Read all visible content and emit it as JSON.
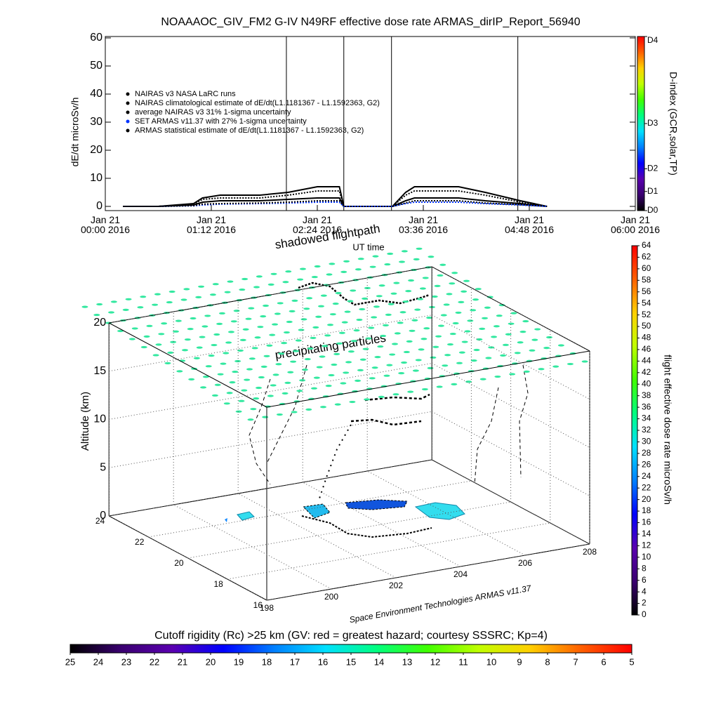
{
  "chart_data": {
    "type": "line",
    "title": "NOAAAOC_GIV_FM2 G-IV    N49RF   effective dose rate ARMAS_dirIP_Report_56940",
    "ylabel": "dE/dt microSv/h",
    "xlabel": "UT time",
    "x": [
      0.2,
      0.6,
      1.0,
      1.1,
      1.3,
      1.75,
      2.07,
      2.4,
      2.65,
      2.7,
      3.25,
      3.4,
      3.5,
      4.0,
      4.3,
      4.7,
      5.0
    ],
    "series": [
      {
        "name": "NAIRAS v3 NASA LaRC runs",
        "color": "#000000",
        "values": [
          0,
          0,
          0.5,
          1.5,
          2,
          2,
          2.5,
          3,
          3,
          0,
          0,
          2,
          3,
          3,
          2,
          1,
          0
        ]
      },
      {
        "name": "NAIRAS climatological estimate of dE/dt(L1.1181367 - L1.1592363, G2)",
        "color": "#000000",
        "values": [
          0,
          0,
          1,
          3,
          4,
          4,
          5,
          7,
          7,
          0,
          0,
          5,
          7,
          7,
          5,
          2,
          0
        ]
      },
      {
        "name": "average NAIRAS v3 31% 1-sigma uncertainty",
        "color": "#000000",
        "values": [
          0,
          0,
          0.8,
          2.5,
          3,
          3,
          4,
          5.5,
          5.5,
          0,
          0,
          4,
          5.5,
          5.5,
          4,
          1.5,
          0
        ]
      },
      {
        "name": "SET ARMAS v11.37 with 27% 1-sigma uncertainty",
        "color": "#0033ff",
        "values": [
          0,
          0,
          0.2,
          0.5,
          0.8,
          1,
          1.2,
          1.5,
          1.5,
          0,
          0,
          1,
          1.5,
          1.5,
          1,
          0.5,
          0
        ]
      },
      {
        "name": "ARMAS statistical estimate of dE/dt(L1.1181367 - L1.1592363, G2)",
        "color": "#000000",
        "values": [
          0,
          0,
          0.3,
          0.8,
          1,
          1.2,
          1.5,
          2,
          2,
          0,
          0,
          1.2,
          2,
          2,
          1.2,
          0.6,
          0
        ]
      }
    ],
    "vlines": [
      2.05,
      2.7,
      3.24,
      4.67
    ],
    "xlim": [
      0,
      6
    ],
    "xticks": [
      {
        "value": 0,
        "label": "Jan 21\n00:00 2016"
      },
      {
        "value": 1.2,
        "label": "Jan 21\n01:12 2016"
      },
      {
        "value": 2.4,
        "label": "Jan 21\n02:24 2016"
      },
      {
        "value": 3.6,
        "label": "Jan 21\n03:36 2016"
      },
      {
        "value": 4.8,
        "label": "Jan 21\n04:48 2016"
      },
      {
        "value": 6,
        "label": "Jan 21\n06:00 2016"
      }
    ],
    "ylim": [
      -1.5,
      60.5
    ],
    "yticks": [
      0,
      10,
      20,
      30,
      40,
      50,
      60
    ],
    "colorbar": {
      "label": "D-index (GCR,solar,TP)",
      "lim": [
        0,
        1
      ],
      "ticks": [
        {
          "value": 0,
          "label": "D0"
        },
        {
          "value": 0.11,
          "label": "D1"
        },
        {
          "value": 0.24,
          "label": "D2"
        },
        {
          "value": 0.5,
          "label": "D3"
        },
        {
          "value": 1,
          "label": "D4"
        }
      ]
    }
  },
  "colormap": [
    "#000000",
    "#3a0070",
    "#5a00b0",
    "#0000ff",
    "#0080ff",
    "#00e0ff",
    "#00ff80",
    "#40ff00",
    "#c0ff00",
    "#ffd000",
    "#ff6000",
    "#ff0000"
  ],
  "scene": {
    "annotations": [
      "shadowed flightpath",
      "precipitating particles"
    ],
    "zlabel": "Altitude (km)",
    "credit": "Space Environment Technologies ARMAS v11.37",
    "zticks": [
      0,
      5,
      10,
      15,
      20
    ],
    "latticks": [
      24,
      22,
      20,
      18,
      16
    ],
    "lonticks": [
      198,
      200,
      202,
      204,
      206,
      208
    ],
    "dose_colorbar": {
      "label": "flight effective dose rate microSv/h",
      "lim": [
        0,
        64
      ],
      "ticks": [
        0,
        2,
        4,
        6,
        8,
        10,
        12,
        14,
        16,
        18,
        20,
        22,
        24,
        26,
        28,
        30,
        32,
        34,
        36,
        38,
        40,
        42,
        44,
        46,
        48,
        50,
        52,
        54,
        56,
        58,
        60,
        62,
        64
      ]
    },
    "rigidity_colorbar": {
      "label": "Cutoff rigidity (Rc) >25 km (GV: red = greatest hazard; courtesy SSSRC; Kp=4)",
      "lim": [
        25,
        5
      ],
      "ticks": [
        25,
        24,
        23,
        22,
        21,
        20,
        19,
        18,
        17,
        16,
        15,
        14,
        13,
        12,
        11,
        10,
        9,
        8,
        7,
        6,
        5
      ]
    }
  }
}
